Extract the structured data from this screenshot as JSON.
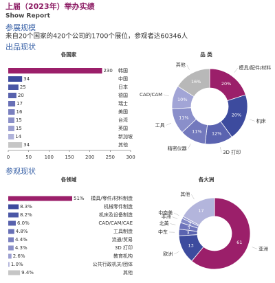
{
  "header": {
    "title": "上届（2023年）举办实绩",
    "subtitle": "Show Report"
  },
  "scale": {
    "heading": "参展规模",
    "text": "来自20个国家的420个公司的1700个展位，参观者达60346人"
  },
  "sections": [
    "出品现状",
    "参观现状"
  ],
  "chart_data": [
    {
      "type": "bar",
      "orientation": "horizontal",
      "title": "各国家",
      "categories": [
        "韩国",
        "中国",
        "日本",
        "德国",
        "瑞士",
        "美国",
        "台湾",
        "英国",
        "新加坡",
        "其他"
      ],
      "values": [
        230,
        34,
        25,
        20,
        17,
        16,
        15,
        15,
        14,
        34
      ],
      "colors": [
        "#9b1f6a",
        "#3d4b9e",
        "#4a57a6",
        "#5862ad",
        "#6870b6",
        "#7a80bf",
        "#8b90c8",
        "#9ca0d1",
        "#b0b3da",
        "#c6c6c6"
      ],
      "xlim": [
        0,
        300
      ],
      "xticks": [
        0,
        50,
        100,
        150,
        200,
        250,
        300
      ]
    },
    {
      "type": "donut",
      "title": "品 类",
      "categories": [
        "模具/配件/材料",
        "机床",
        "3D 打印",
        "精密仪器",
        "工具",
        "CAD/CAM",
        "其他"
      ],
      "values": [
        20,
        20,
        12,
        11,
        11,
        10,
        16
      ],
      "value_labels": [
        "20%",
        "20%",
        "12%",
        "11%",
        "11%",
        "10%",
        "16%"
      ],
      "colors": [
        "#9b1f6a",
        "#3d4b9e",
        "#5a63b0",
        "#7379bd",
        "#8a8fca",
        "#a2a5d6",
        "#b8b8b8"
      ]
    },
    {
      "type": "bar",
      "orientation": "horizontal",
      "title": "各领域",
      "categories": [
        "模具/零件/材料制造",
        "机械零件制造",
        "机床及设备制造",
        "CAD/CAM/CAE",
        "工具制造",
        "流通/贸易",
        "3D 打印",
        "教育机构",
        "公共行政机关/团体",
        "其他"
      ],
      "values": [
        51,
        8.3,
        8.2,
        6.0,
        4.8,
        4.4,
        4.3,
        2.6,
        1.0,
        9.4
      ],
      "value_labels": [
        "51%",
        "8.3%",
        "8.2%",
        "6.0%",
        "4.8%",
        "4.4%",
        "4.3%",
        "2.6%",
        "1.0%",
        "9.4%"
      ],
      "colors": [
        "#9b1f6a",
        "#3d4b9e",
        "#4a57a6",
        "#5862ad",
        "#6870b6",
        "#7a80bf",
        "#8b90c8",
        "#9ca0d1",
        "#b0b3da",
        "#c6c6c6"
      ]
    },
    {
      "type": "donut",
      "title": "各大洲",
      "categories": [
        "亚洲",
        "欧洲",
        "中东",
        "北美",
        "非洲",
        "中南美",
        "其他"
      ],
      "values": [
        61,
        13,
        3,
        3,
        2,
        1,
        17
      ],
      "colors": [
        "#9b1f6a",
        "#3d4b9e",
        "#5a63b0",
        "#6d74bb",
        "#8188c6",
        "#979bd0",
        "#b3b5dc"
      ]
    }
  ]
}
